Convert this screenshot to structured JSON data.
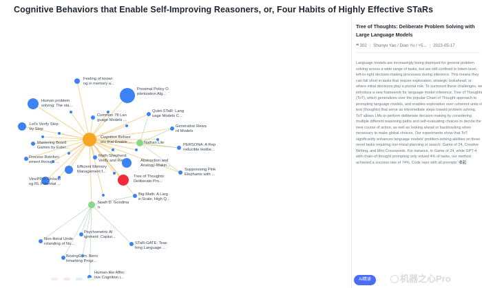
{
  "header": {
    "title": "Cognitive Behaviors that Enable Self-Improving Reasoners, or, Four Habits of Highly Effective STaRs"
  },
  "graph": {
    "center": {
      "label": [
        "Cognitive Behavi",
        "ors that Enable ..."
      ]
    },
    "nodes": [
      {
        "id": "feeling",
        "kind": "related",
        "label": [
          "Feeling of knowi",
          "ng in memory a..."
        ]
      },
      {
        "id": "proximal",
        "kind": "related",
        "label": [
          "Proximal Policy O",
          "ptimization Alg..."
        ]
      },
      {
        "id": "human-problem",
        "kind": "related",
        "label": [
          "Human problem",
          "solving: The sta..."
        ]
      },
      {
        "id": "common78",
        "kind": "cited",
        "label": [
          "Common 78 Lan",
          "guage Models ..."
        ]
      },
      {
        "id": "quiet-star",
        "kind": "cited",
        "label": [
          "Quiet-STaR: Lang",
          "uage Models C..."
        ]
      },
      {
        "id": "lets-verify",
        "kind": "related",
        "label": [
          "Let's Verify Step",
          "by Step"
        ]
      },
      {
        "id": "generative-reward",
        "kind": "cited",
        "label": [
          "Generative Rewa",
          "rd Models"
        ]
      },
      {
        "id": "mastering-board",
        "kind": "cited",
        "label": [
          "Mastering Board",
          "Games by Exter..."
        ]
      },
      {
        "id": "nathan-lile",
        "kind": "author",
        "label": [
          "Nathan Lile"
        ]
      },
      {
        "id": "persona",
        "kind": "cited",
        "label": [
          "PERSONA: A Rep",
          "roducible testbe..."
        ]
      },
      {
        "id": "process-reinforcement",
        "kind": "cited",
        "label": [
          "Process Reinforc",
          "ement through ..."
        ]
      },
      {
        "id": "math-shepherd",
        "kind": "cited",
        "label": [
          "Math-Shepherd:",
          "Verify and Reinf..."
        ]
      },
      {
        "id": "abstraction",
        "kind": "related",
        "label": [
          "Abstraction and",
          "Analogy-Makin..."
        ]
      },
      {
        "id": "efficient-memory",
        "kind": "related",
        "label": [
          "Efficient Memory",
          "Management f..."
        ]
      },
      {
        "id": "suppressing",
        "kind": "cited",
        "label": [
          "Suppressing Pink",
          "Elephants with ..."
        ]
      },
      {
        "id": "vineppo",
        "kind": "cited",
        "label": [
          "VinePPO: Unlocki",
          "ng RL Potential ..."
        ]
      },
      {
        "id": "tree-of-thoughts",
        "kind": "selected",
        "label": [
          "Tree of Thoughts:",
          "Deliberate Pro..."
        ]
      },
      {
        "id": "big-math",
        "kind": "cited",
        "label": [
          "Big-Math: A Larg",
          "e-Scale, High Q..."
        ]
      },
      {
        "id": "noah-goodman",
        "kind": "author",
        "label": [
          "Noah D. Goodma",
          "n"
        ]
      },
      {
        "id": "psychometric",
        "kind": "cited",
        "label": [
          "Psychometric Al",
          "ignment: Captur..."
        ]
      },
      {
        "id": "non-literal",
        "kind": "cited",
        "label": [
          "Non-literal Unde",
          "rstanding of Nu..."
        ]
      },
      {
        "id": "star-gate",
        "kind": "cited",
        "label": [
          "STaR-GATE: Teac",
          "hing Language ..."
        ]
      },
      {
        "id": "boxinggym",
        "kind": "cited",
        "label": [
          "BoxingGym: Benc",
          "hmarking Progr..."
        ]
      },
      {
        "id": "human-like-affective",
        "kind": "cited",
        "label": [
          "Human-like Affec",
          "tive Cognition i..."
        ]
      },
      {
        "id": "d1",
        "kind": "dot",
        "label": []
      },
      {
        "id": "d2",
        "kind": "dot",
        "label": []
      },
      {
        "id": "d3",
        "kind": "dot",
        "label": []
      },
      {
        "id": "d4",
        "kind": "dot",
        "label": []
      },
      {
        "id": "d5",
        "kind": "dot",
        "label": []
      },
      {
        "id": "d6",
        "kind": "dot",
        "label": []
      },
      {
        "id": "d7",
        "kind": "dot",
        "label": []
      },
      {
        "id": "d8",
        "kind": "dot",
        "label": []
      },
      {
        "id": "d9",
        "kind": "dot",
        "label": []
      },
      {
        "id": "d10",
        "kind": "dot",
        "label": []
      },
      {
        "id": "d11",
        "kind": "dot",
        "label": []
      },
      {
        "id": "d12",
        "kind": "dot",
        "label": []
      },
      {
        "id": "d13",
        "kind": "dot",
        "label": []
      },
      {
        "id": "d14",
        "kind": "dot",
        "label": []
      }
    ],
    "secondary_links": [
      [
        "noah-goodman",
        "psychometric"
      ],
      [
        "noah-goodman",
        "non-literal"
      ],
      [
        "noah-goodman",
        "star-gate"
      ],
      [
        "noah-goodman",
        "boxinggym"
      ],
      [
        "noah-goodman",
        "human-like-affective"
      ],
      [
        "noah-goodman",
        "big-math"
      ],
      [
        "nathan-lile",
        "generative-reward"
      ],
      [
        "nathan-lile",
        "persona"
      ],
      [
        "nathan-lile",
        "suppressing"
      ],
      [
        "nathan-lile",
        "quiet-star"
      ]
    ]
  },
  "colors": {
    "related": "#3b82f6",
    "cited": "#3b82f6",
    "author": "#86d98a",
    "selected": "#ef2b3a",
    "center": "#f5a623",
    "link_primary": "#f6c879",
    "link_secondary": "#b7d8b9"
  },
  "legend": [
    {
      "label": "",
      "bg": "#fdeedd",
      "fg": "#e59b4a"
    },
    {
      "label": "",
      "bg": "#fde4e4",
      "fg": "#e25a5a"
    },
    {
      "label": "",
      "bg": "#e1ecfd",
      "fg": "#4a7be0"
    },
    {
      "label": "",
      "bg": "#e4f5e4",
      "fg": "#4aa85a"
    }
  ],
  "panel": {
    "title": "Tree of Thoughts: Deliberate Problem Solving with Large Language Models",
    "citations": "302",
    "authors": "Shunyu Yao / Dian Yu / +5...",
    "date": "2023-05-17",
    "abstract": "Language models are increasingly being deployed for general problem solving across a wide range of tasks, but are still confined to token-level, left-to-right decision-making processes during inference. This means they can fall short in tasks that require exploration, strategic lookahead, or where initial decisions play a pivotal role. To surmount these challenges, we introduce a new framework for language model inference, Tree of Thoughts (ToT), which generalizes over the popular Chain of Thought approach to prompting language models, and enables exploration over coherent units of text (thoughts) that serve as intermediate steps toward problem solving. ToT allows LMs to perform deliberate decision making by considering multiple different reasoning paths and self-evaluating choices to decide the next course of action, as well as looking ahead or backtracking when necessary to make global choices. Our experiments show that ToT significantly enhances language models' problem-solving abilities on three novel tasks requiring non-trivial planning or search: Game of 24, Creative Writing, and Mini Crosswords. For instance, in Game of 24, while GPT-4 with chain-of-thought prompting only solved 4% of tasks, our method achieved a success rate of 74%. Code repo with all prompts:",
    "collapse_label": "收起"
  },
  "ai_button": {
    "label": "AI精读"
  },
  "watermark": {
    "text": "机器之心Pro"
  }
}
